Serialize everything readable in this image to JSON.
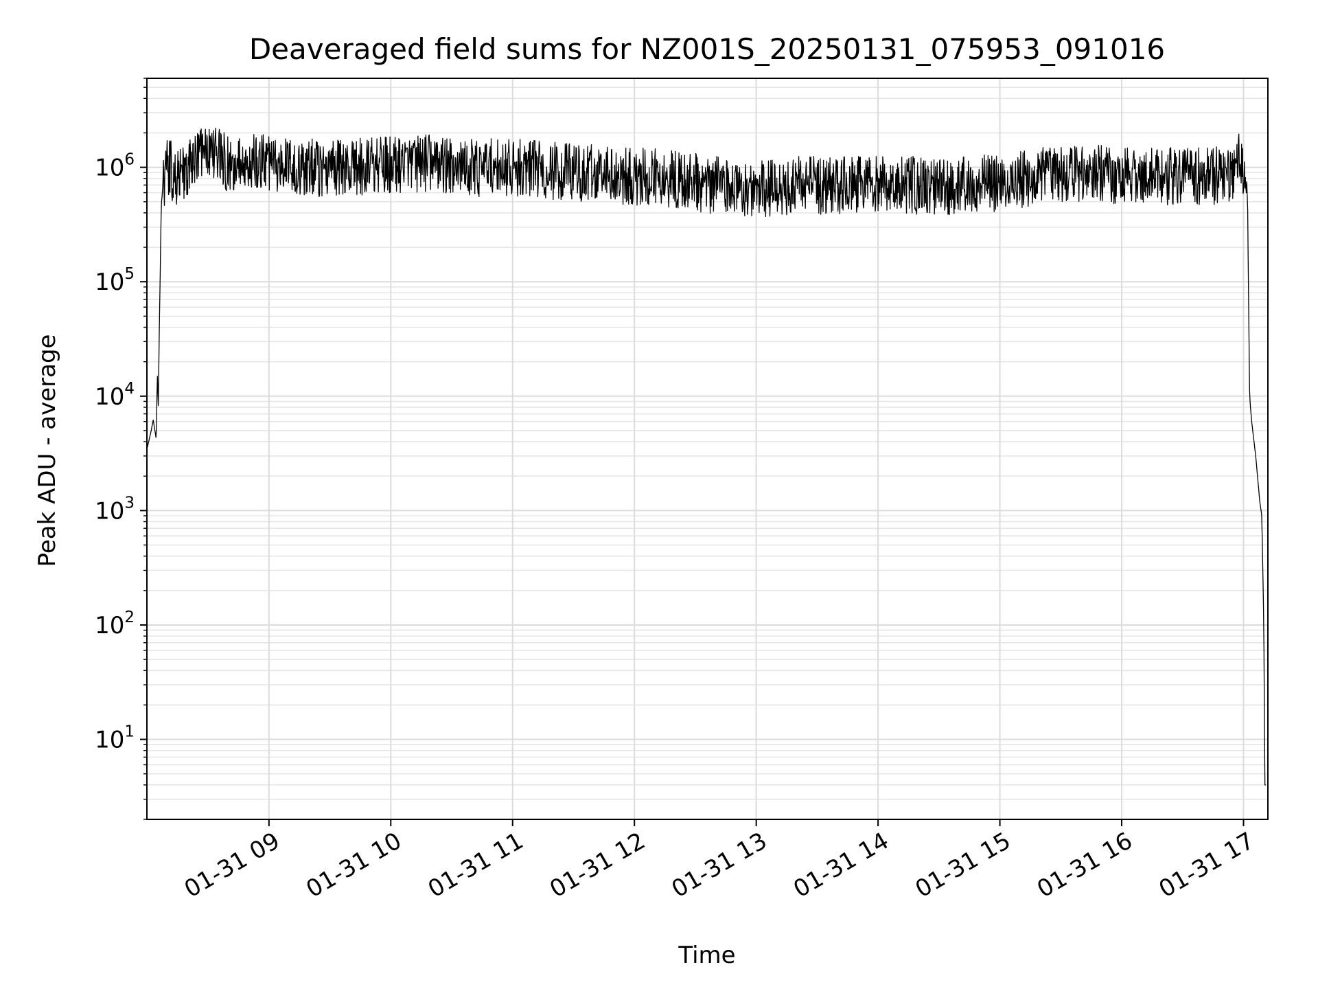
{
  "chart_data": {
    "type": "line",
    "title": "Deaveraged field sums for NZ001S_20250131_075953_091016",
    "xlabel": "Time",
    "ylabel": "Peak ADU - average",
    "x_type": "datetime",
    "xlim": [
      "2025-01-31T07:59:53",
      "2025-01-31T17:12:00"
    ],
    "x_ticks": [
      {
        "value": "2025-01-31T09:00:00",
        "label": "01-31 09"
      },
      {
        "value": "2025-01-31T10:00:00",
        "label": "01-31 10"
      },
      {
        "value": "2025-01-31T11:00:00",
        "label": "01-31 11"
      },
      {
        "value": "2025-01-31T12:00:00",
        "label": "01-31 12"
      },
      {
        "value": "2025-01-31T13:00:00",
        "label": "01-31 13"
      },
      {
        "value": "2025-01-31T14:00:00",
        "label": "01-31 14"
      },
      {
        "value": "2025-01-31T15:00:00",
        "label": "01-31 15"
      },
      {
        "value": "2025-01-31T16:00:00",
        "label": "01-31 16"
      },
      {
        "value": "2025-01-31T17:00:00",
        "label": "01-31 17"
      }
    ],
    "y_scale": "log",
    "ylim": [
      2,
      6000000
    ],
    "y_ticks": [
      {
        "value": 10,
        "base": "10",
        "exp": "1"
      },
      {
        "value": 100,
        "base": "10",
        "exp": "2"
      },
      {
        "value": 1000,
        "base": "10",
        "exp": "3"
      },
      {
        "value": 10000,
        "base": "10",
        "exp": "4"
      },
      {
        "value": 100000,
        "base": "10",
        "exp": "5"
      },
      {
        "value": 1000000,
        "base": "10",
        "exp": "6"
      }
    ],
    "grid": true,
    "legend": "none",
    "series": [
      {
        "color": "#000000",
        "x": [
          "2025-01-31T08:00:00",
          "2025-01-31T08:02:00",
          "2025-01-31T08:03:00",
          "2025-01-31T08:04:30",
          "2025-01-31T08:05:00",
          "2025-01-31T08:05:30",
          "2025-01-31T08:06:00",
          "2025-01-31T08:07:00",
          "2025-01-31T08:09:00",
          "2025-01-31T08:11:00",
          "2025-01-31T08:13:00",
          "2025-01-31T08:15:00",
          "2025-01-31T08:20:00",
          "2025-01-31T08:25:00",
          "2025-01-31T08:30:00",
          "2025-01-31T08:40:00",
          "2025-01-31T08:50:00",
          "2025-01-31T09:00:00",
          "2025-01-31T09:20:00",
          "2025-01-31T09:40:00",
          "2025-01-31T10:00:00",
          "2025-01-31T10:20:00",
          "2025-01-31T10:40:00",
          "2025-01-31T11:00:00",
          "2025-01-31T11:20:00",
          "2025-01-31T11:40:00",
          "2025-01-31T12:00:00",
          "2025-01-31T12:20:00",
          "2025-01-31T12:40:00",
          "2025-01-31T13:00:00",
          "2025-01-31T13:20:00",
          "2025-01-31T13:40:00",
          "2025-01-31T14:00:00",
          "2025-01-31T14:20:00",
          "2025-01-31T14:40:00",
          "2025-01-31T15:00:00",
          "2025-01-31T15:20:00",
          "2025-01-31T15:40:00",
          "2025-01-31T16:00:00",
          "2025-01-31T16:20:00",
          "2025-01-31T16:40:00",
          "2025-01-31T16:50:00",
          "2025-01-31T16:55:00",
          "2025-01-31T16:58:00",
          "2025-01-31T17:00:00",
          "2025-01-31T17:02:00",
          "2025-01-31T17:03:00",
          "2025-01-31T17:04:00",
          "2025-01-31T17:06:00",
          "2025-01-31T17:08:00",
          "2025-01-31T17:09:00",
          "2025-01-31T17:10:00",
          "2025-01-31T17:10:30",
          "2025-01-31T17:11:00"
        ],
        "y": [
          3500,
          5000,
          6200,
          4200,
          16000,
          8000,
          40000,
          500000,
          1000000,
          1000000,
          900000,
          800000,
          1000000,
          1300000,
          1400000,
          1100000,
          1100000,
          1100000,
          1000000,
          1000000,
          1050000,
          1100000,
          1000000,
          1000000,
          950000,
          900000,
          850000,
          800000,
          700000,
          650000,
          700000,
          700000,
          700000,
          700000,
          700000,
          750000,
          850000,
          900000,
          850000,
          850000,
          850000,
          850000,
          850000,
          1500000,
          800000,
          500000,
          10000,
          6000,
          3000,
          1200,
          900,
          100,
          4,
          4
        ],
        "noise": {
          "low": 0.55,
          "high": 1.9
        }
      }
    ]
  }
}
